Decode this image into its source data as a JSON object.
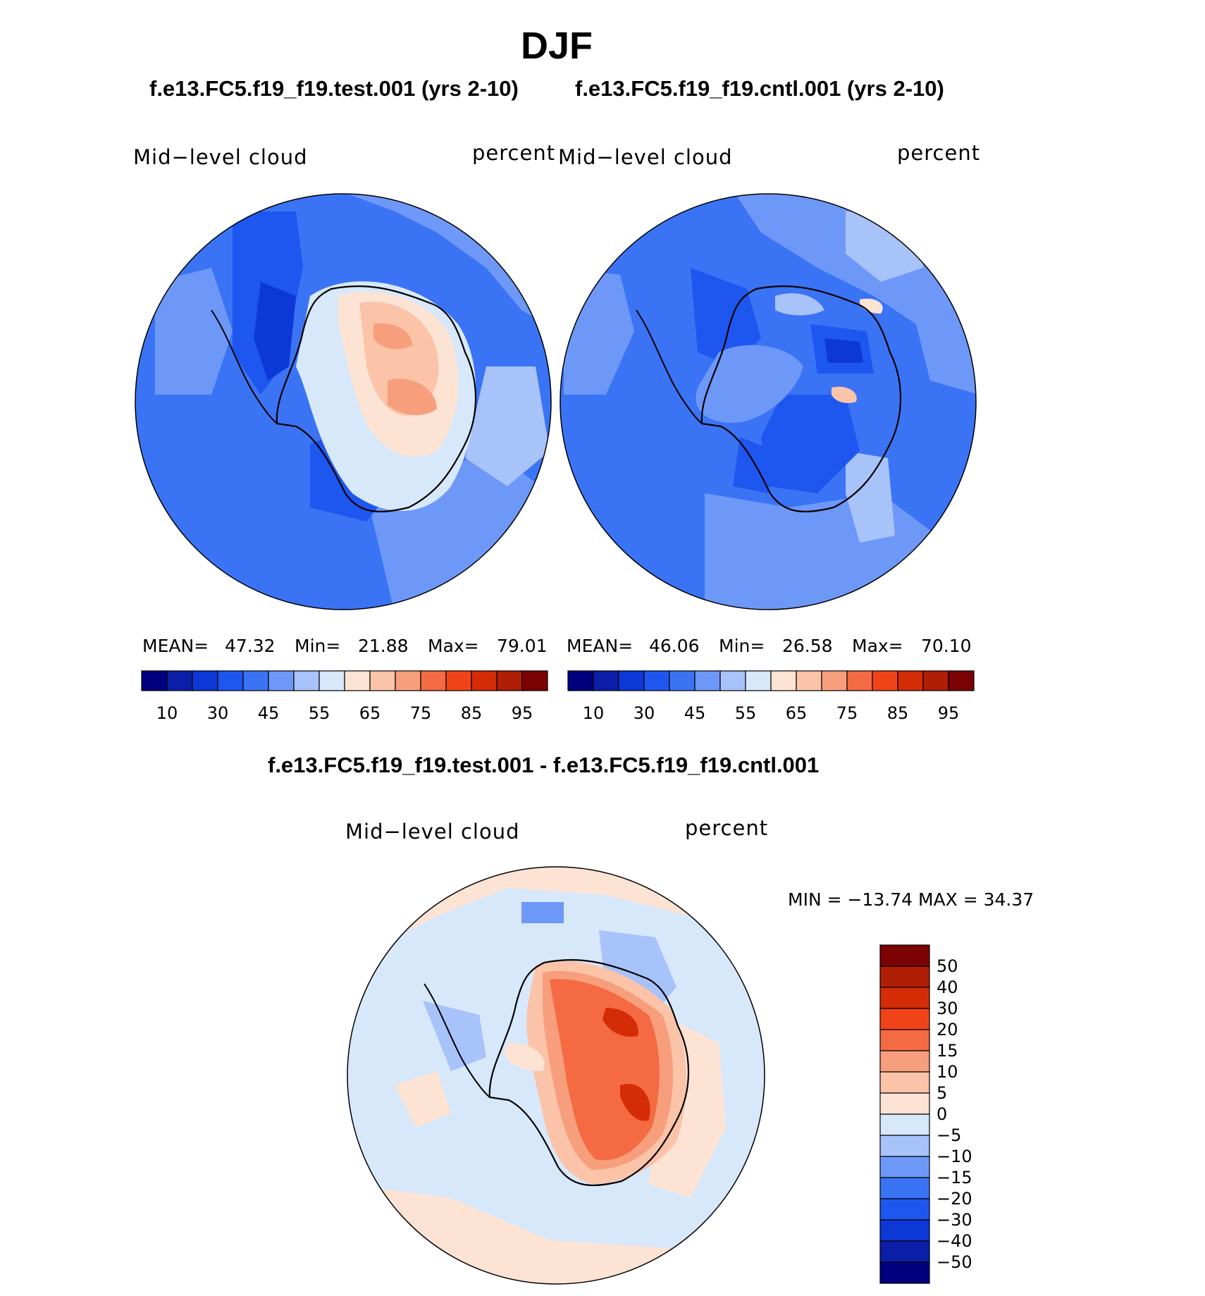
{
  "title": "DJF",
  "panels": [
    {
      "case": "f.e13.FC5.f19_f19.test.001 (yrs 2-10)",
      "variable": "Mid−level cloud",
      "units": "percent",
      "stats": {
        "mean_label": "MEAN=",
        "mean": "47.32",
        "min_label": "Min=",
        "min": "21.88",
        "max_label": "Max=",
        "max": "79.01"
      }
    },
    {
      "case": "f.e13.FC5.f19_f19.cntl.001 (yrs 2-10)",
      "variable": "Mid−level cloud",
      "units": "percent",
      "stats": {
        "mean_label": "MEAN=",
        "mean": "46.06",
        "min_label": "Min=",
        "min": "26.58",
        "max_label": "Max=",
        "max": "70.10"
      }
    }
  ],
  "diff_panel": {
    "case": "f.e13.FC5.f19_f19.test.001 - f.e13.FC5.f19_f19.cntl.001",
    "variable": "Mid−level cloud",
    "units": "percent",
    "minmax": "MIN = −13.74 MAX =   34.37"
  },
  "chart_data": [
    {
      "type": "heatmap",
      "projection": "south polar stereographic",
      "title": "f.e13.FC5.f19_f19.test.001 (yrs 2-10)",
      "variable": "Mid-level cloud",
      "units": "percent",
      "mean": 47.32,
      "min": 21.88,
      "max": 79.01,
      "colorbar_ticks": [
        "10",
        "30",
        "45",
        "55",
        "65",
        "75",
        "85",
        "95"
      ],
      "colors": [
        "#00007f",
        "#0a1ea8",
        "#0c38d8",
        "#1e56f0",
        "#3a74f5",
        "#6e98f8",
        "#a8c2fa",
        "#d8e8fb",
        "#fde3d4",
        "#fbc3a8",
        "#f79e7c",
        "#f46a42",
        "#f14318",
        "#d42c07",
        "#b01e05",
        "#7c0303"
      ]
    },
    {
      "type": "heatmap",
      "projection": "south polar stereographic",
      "title": "f.e13.FC5.f19_f19.cntl.001 (yrs 2-10)",
      "variable": "Mid-level cloud",
      "units": "percent",
      "mean": 46.06,
      "min": 26.58,
      "max": 70.1,
      "colorbar_ticks": [
        "10",
        "30",
        "45",
        "55",
        "65",
        "75",
        "85",
        "95"
      ],
      "colors": [
        "#00007f",
        "#0a1ea8",
        "#0c38d8",
        "#1e56f0",
        "#3a74f5",
        "#6e98f8",
        "#a8c2fa",
        "#d8e8fb",
        "#fde3d4",
        "#fbc3a8",
        "#f79e7c",
        "#f46a42",
        "#f14318",
        "#d42c07",
        "#b01e05",
        "#7c0303"
      ]
    },
    {
      "type": "heatmap",
      "projection": "south polar stereographic",
      "title": "f.e13.FC5.f19_f19.test.001 - f.e13.FC5.f19_f19.cntl.001",
      "variable": "Mid-level cloud",
      "units": "percent",
      "min": -13.74,
      "max": 34.37,
      "colorbar_ticks": [
        "50",
        "40",
        "30",
        "20",
        "15",
        "10",
        "5",
        "0",
        "−5",
        "−10",
        "−15",
        "−20",
        "−30",
        "−40",
        "−50"
      ],
      "colors": [
        "#7c0303",
        "#b01e05",
        "#d42c07",
        "#f14318",
        "#f46a42",
        "#f79e7c",
        "#fbc3a8",
        "#fde3d4",
        "#d8e8fb",
        "#a8c2fa",
        "#6e98f8",
        "#3a74f5",
        "#1e56f0",
        "#0c38d8",
        "#0a1ea8",
        "#00007f"
      ]
    }
  ]
}
